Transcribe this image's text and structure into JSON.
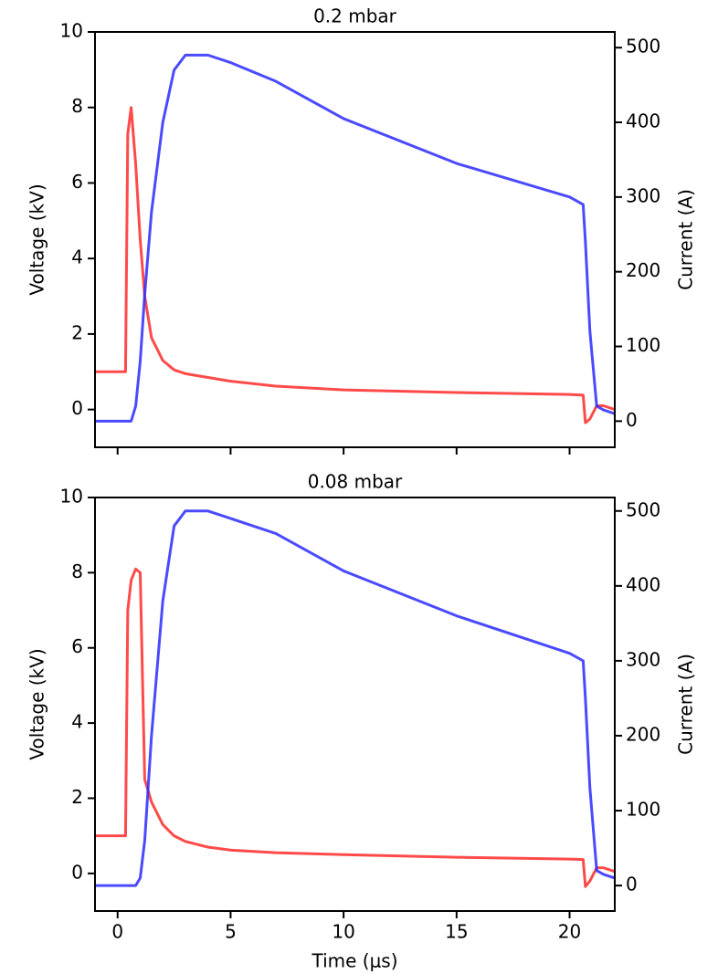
{
  "chart_data": [
    {
      "type": "line",
      "title": "0.2 mbar",
      "ylabel": "Voltage (kV)",
      "y2label": "Current (A)",
      "x": [
        -1,
        0,
        0.35,
        0.45,
        0.6,
        0.8,
        1,
        1.2,
        1.5,
        2,
        2.5,
        3,
        4,
        5,
        7,
        10,
        15,
        20,
        20.6,
        20.7,
        20.9,
        21.2,
        21.5,
        22
      ],
      "series": [
        {
          "color": "#ff2a2a",
          "axis": "y",
          "values": [
            1.0,
            1.0,
            1.0,
            7.3,
            8.0,
            6.5,
            4.5,
            3.0,
            1.9,
            1.3,
            1.05,
            0.95,
            0.85,
            0.75,
            0.62,
            0.52,
            0.45,
            0.4,
            0.38,
            -0.35,
            -0.25,
            0.1,
            0.1,
            0.0
          ]
        },
        {
          "color": "#2a2aff",
          "axis": "y2",
          "values": [
            0,
            0,
            0,
            0,
            0,
            20,
            80,
            170,
            280,
            400,
            470,
            490,
            490,
            480,
            455,
            405,
            345,
            300,
            290,
            240,
            120,
            20,
            15,
            10
          ]
        }
      ],
      "xlim": [
        -1,
        22
      ],
      "xticks": [
        0,
        5,
        10,
        15,
        20
      ],
      "xtick_labels": false,
      "ylim": [
        -1,
        10
      ],
      "yticks": [
        0,
        2,
        4,
        6,
        8,
        10
      ],
      "y2lim": [
        -35,
        521
      ],
      "y2ticks": [
        0,
        100,
        200,
        300,
        400,
        500
      ]
    },
    {
      "type": "line",
      "title": "0.08 mbar",
      "ylabel": "Voltage (kV)",
      "y2label": "Current (A)",
      "xlabel": "Time (μs)",
      "x": [
        -1,
        0,
        0.35,
        0.45,
        0.6,
        0.8,
        1,
        1.2,
        1.5,
        2,
        2.5,
        3,
        4,
        5,
        7,
        10,
        15,
        20,
        20.6,
        20.7,
        20.9,
        21.2,
        21.5,
        22
      ],
      "series": [
        {
          "color": "#ff2a2a",
          "axis": "y",
          "values": [
            1.0,
            1.0,
            1.0,
            7.0,
            7.8,
            8.1,
            8.0,
            2.5,
            1.9,
            1.3,
            1.0,
            0.85,
            0.7,
            0.62,
            0.55,
            0.5,
            0.43,
            0.38,
            0.37,
            -0.35,
            -0.2,
            0.15,
            0.15,
            0.05
          ]
        },
        {
          "color": "#2a2aff",
          "axis": "y2",
          "values": [
            0,
            0,
            0,
            0,
            0,
            0,
            10,
            60,
            200,
            380,
            480,
            500,
            500,
            490,
            470,
            420,
            360,
            310,
            300,
            250,
            130,
            20,
            15,
            10
          ]
        }
      ],
      "xlim": [
        -1,
        22
      ],
      "xticks": [
        0,
        5,
        10,
        15,
        20
      ],
      "xtick_labels": true,
      "ylim": [
        -1,
        10
      ],
      "yticks": [
        0,
        2,
        4,
        6,
        8,
        10
      ],
      "y2lim": [
        -34,
        518
      ],
      "y2ticks": [
        0,
        100,
        200,
        300,
        400,
        500
      ]
    }
  ]
}
